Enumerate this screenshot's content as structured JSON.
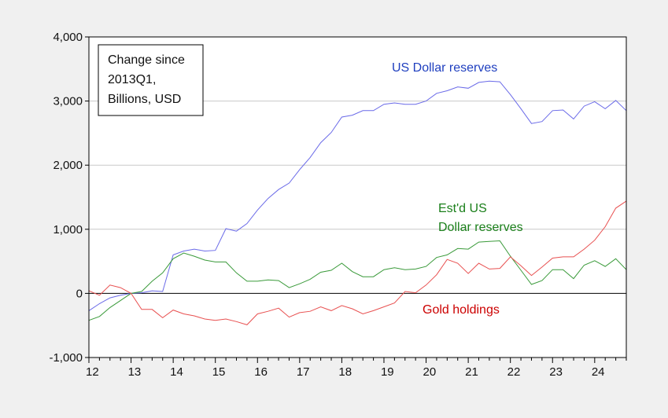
{
  "colors": {
    "background": "#f0f0f0",
    "plot_bg": "#ffffff",
    "grid": "#c8c8c8"
  },
  "chart_data": {
    "type": "line",
    "title": "",
    "xlabel": "",
    "ylabel": "",
    "x_start": 2012,
    "x_step": 0.25,
    "xlim": [
      2012,
      2024.75
    ],
    "ylim": [
      -1000,
      4000
    ],
    "x_tick_values": [
      2012,
      2013,
      2014,
      2015,
      2016,
      2017,
      2018,
      2019,
      2020,
      2021,
      2022,
      2023,
      2024
    ],
    "x_tick_labels": [
      "12",
      "13",
      "14",
      "15",
      "16",
      "17",
      "18",
      "19",
      "20",
      "21",
      "22",
      "23",
      "24"
    ],
    "y_tick_values": [
      -1000,
      0,
      1000,
      2000,
      3000,
      4000
    ],
    "y_tick_labels": [
      "-1,000",
      "0",
      "1,000",
      "2,000",
      "3,000",
      "4,000"
    ],
    "grid": "horizontal",
    "box_lines": [
      "Change since",
      "2013Q1,",
      "Billions, USD"
    ],
    "annotations": [
      {
        "text": "US Dollar reserves",
        "color": "#1f3fbf"
      },
      {
        "text": "Est'd US",
        "color": "#1a7f1a"
      },
      {
        "text": "Dollar reserves",
        "color": "#1a7f1a"
      },
      {
        "text": "Gold holdings",
        "color": "#cc0000"
      }
    ],
    "series": [
      {
        "color": "#6a6ae8",
        "values": [
          -270,
          -160,
          -70,
          -30,
          0,
          10,
          40,
          30,
          600,
          660,
          690,
          660,
          670,
          1010,
          970,
          1090,
          1300,
          1480,
          1620,
          1720,
          1930,
          2120,
          2350,
          2510,
          2750,
          2780,
          2850,
          2850,
          2950,
          2970,
          2950,
          2950,
          3000,
          3120,
          3160,
          3220,
          3200,
          3290,
          3310,
          3300,
          3100,
          2880,
          2650,
          2680,
          2850,
          2860,
          2720,
          2920,
          2990,
          2880,
          3010,
          2850
        ]
      },
      {
        "color": "#3a9a3a",
        "values": [
          -420,
          -360,
          -220,
          -110,
          0,
          30,
          190,
          320,
          540,
          630,
          580,
          520,
          490,
          490,
          320,
          190,
          190,
          210,
          200,
          90,
          150,
          220,
          330,
          360,
          470,
          340,
          260,
          260,
          370,
          400,
          370,
          380,
          420,
          560,
          600,
          700,
          690,
          800,
          810,
          820,
          580,
          360,
          140,
          200,
          370,
          370,
          230,
          440,
          510,
          420,
          540,
          370
        ]
      },
      {
        "color": "#e85050",
        "values": [
          40,
          -30,
          130,
          90,
          0,
          -250,
          -250,
          -380,
          -260,
          -320,
          -350,
          -400,
          -420,
          -400,
          -440,
          -490,
          -320,
          -280,
          -230,
          -370,
          -300,
          -280,
          -210,
          -270,
          -190,
          -240,
          -320,
          -270,
          -210,
          -150,
          30,
          10,
          130,
          290,
          530,
          470,
          310,
          470,
          380,
          390,
          570,
          430,
          280,
          410,
          550,
          570,
          570,
          690,
          830,
          1040,
          1330,
          1440
        ]
      }
    ]
  }
}
